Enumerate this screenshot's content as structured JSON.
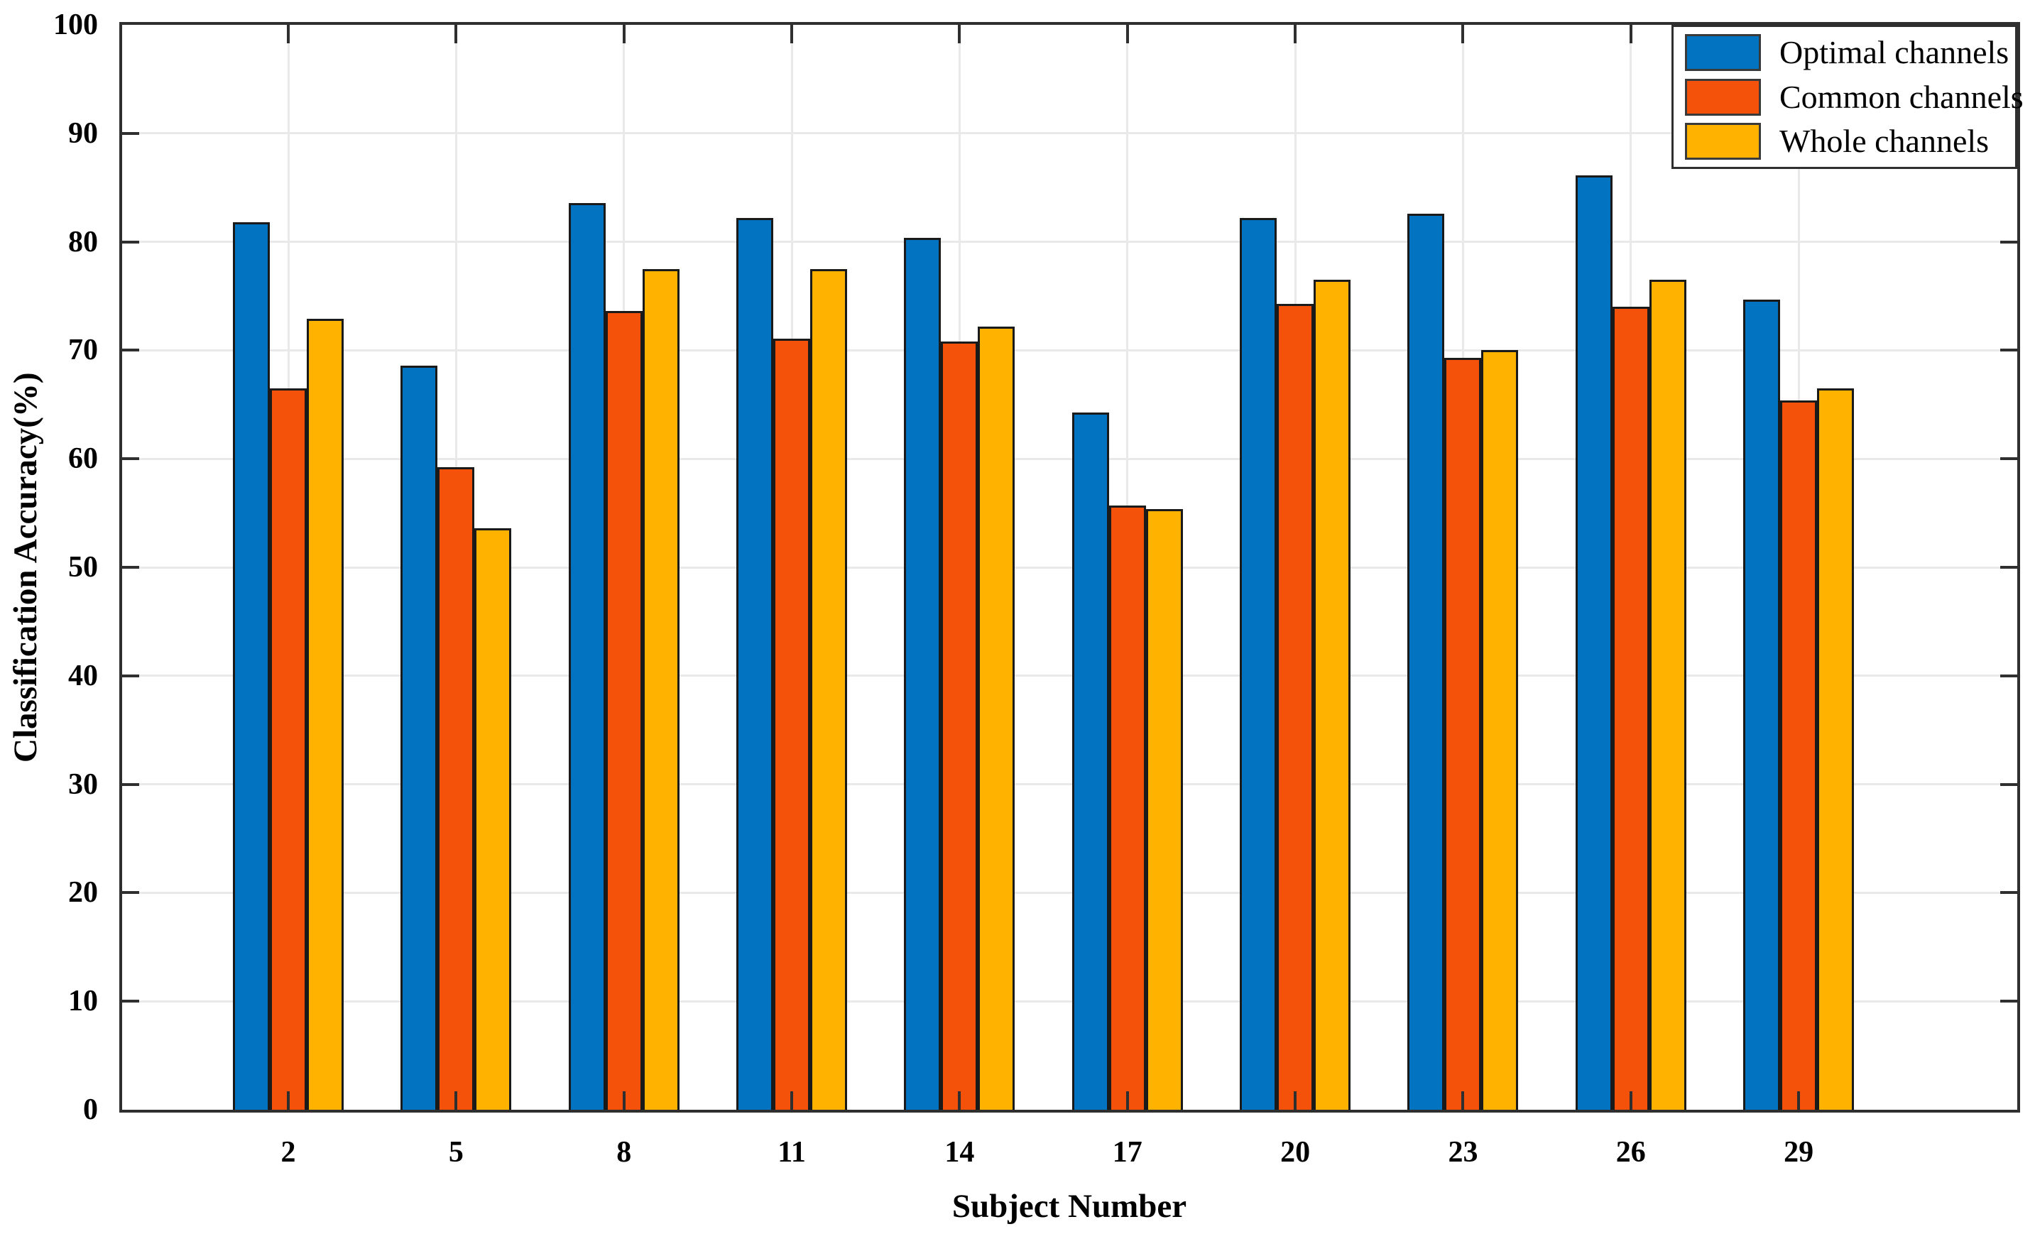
{
  "figure": {
    "background": "#ffffff"
  },
  "chart_data": {
    "type": "bar",
    "title": "",
    "xlabel": "Subject Number",
    "ylabel": "Classification Accuracy(%)",
    "categories": [
      "2",
      "5",
      "8",
      "11",
      "14",
      "17",
      "20",
      "23",
      "26",
      "29"
    ],
    "series": [
      {
        "name": "Optimal channels",
        "color": "#0273C0",
        "values": [
          81.8,
          68.6,
          83.6,
          82.2,
          80.4,
          64.3,
          82.2,
          82.6,
          86.1,
          74.7
        ]
      },
      {
        "name": "Common channels",
        "color": "#F4510B",
        "values": [
          66.5,
          59.2,
          73.6,
          71.1,
          70.8,
          55.7,
          74.3,
          69.3,
          74.0,
          65.4
        ]
      },
      {
        "name": "Whole channels",
        "color": "#FFB200",
        "values": [
          72.9,
          53.6,
          77.5,
          77.5,
          72.2,
          55.4,
          76.5,
          70.0,
          76.5,
          66.5
        ]
      }
    ],
    "ylim": [
      0,
      100
    ],
    "yticks": [
      0,
      10,
      20,
      30,
      40,
      50,
      60,
      70,
      80,
      90,
      100
    ],
    "grid": true,
    "bar_edge_color": "#1a1a1a",
    "gridline_color": "#e9e9e9",
    "axis_color": "#2f2f2f",
    "legend_position": "top-right"
  }
}
